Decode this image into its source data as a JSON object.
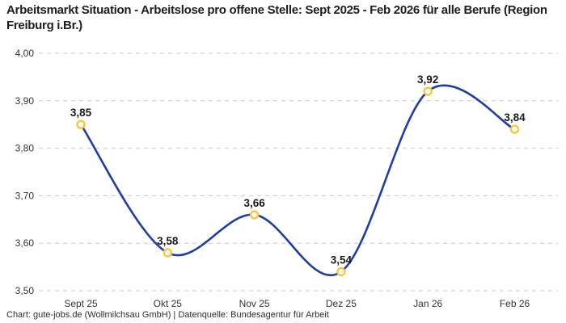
{
  "title": {
    "text": "Arbeitsmarkt Situation - Arbeitslose pro offene Stelle: Sept 2025 - Feb 2026 für alle Berufe (Region Freiburg i.Br.)"
  },
  "footer": {
    "text": "Chart: gute-jobs.de (Wollmilchsau GmbH) | Datenquelle: Bundesagentur für Arbeit"
  },
  "chart_data": {
    "type": "line",
    "title": "Arbeitsmarkt Situation - Arbeitslose pro offene Stelle: Sept 2025 - Feb 2026 für alle Berufe (Region Freiburg i.Br.)",
    "categories": [
      "Sept 25",
      "Okt 25",
      "Nov 25",
      "Dez 25",
      "Jan 26",
      "Feb 26"
    ],
    "values": [
      3.85,
      3.58,
      3.66,
      3.54,
      3.92,
      3.84
    ],
    "value_labels": [
      "3,85",
      "3,58",
      "3,66",
      "3,54",
      "3,92",
      "3,84"
    ],
    "y_ticks": [
      "3,50",
      "3,60",
      "3,70",
      "3,80",
      "3,90",
      "4,00"
    ],
    "ylim": [
      3.5,
      4.0
    ],
    "xlabel": "",
    "ylabel": "",
    "grid": "horizontal-dashed",
    "legend": "none",
    "smooth": true,
    "colors": {
      "line": "#1f3da6",
      "marker_ring": "#fbc53d",
      "marker_fill": "#ffffff",
      "grid": "#c9c9c9",
      "axis_text": "#333333",
      "value_text": "#1a1a1a",
      "title_text": "#1e1e1e",
      "footer_text": "#2d2d2d",
      "background": "#ffffff"
    }
  }
}
